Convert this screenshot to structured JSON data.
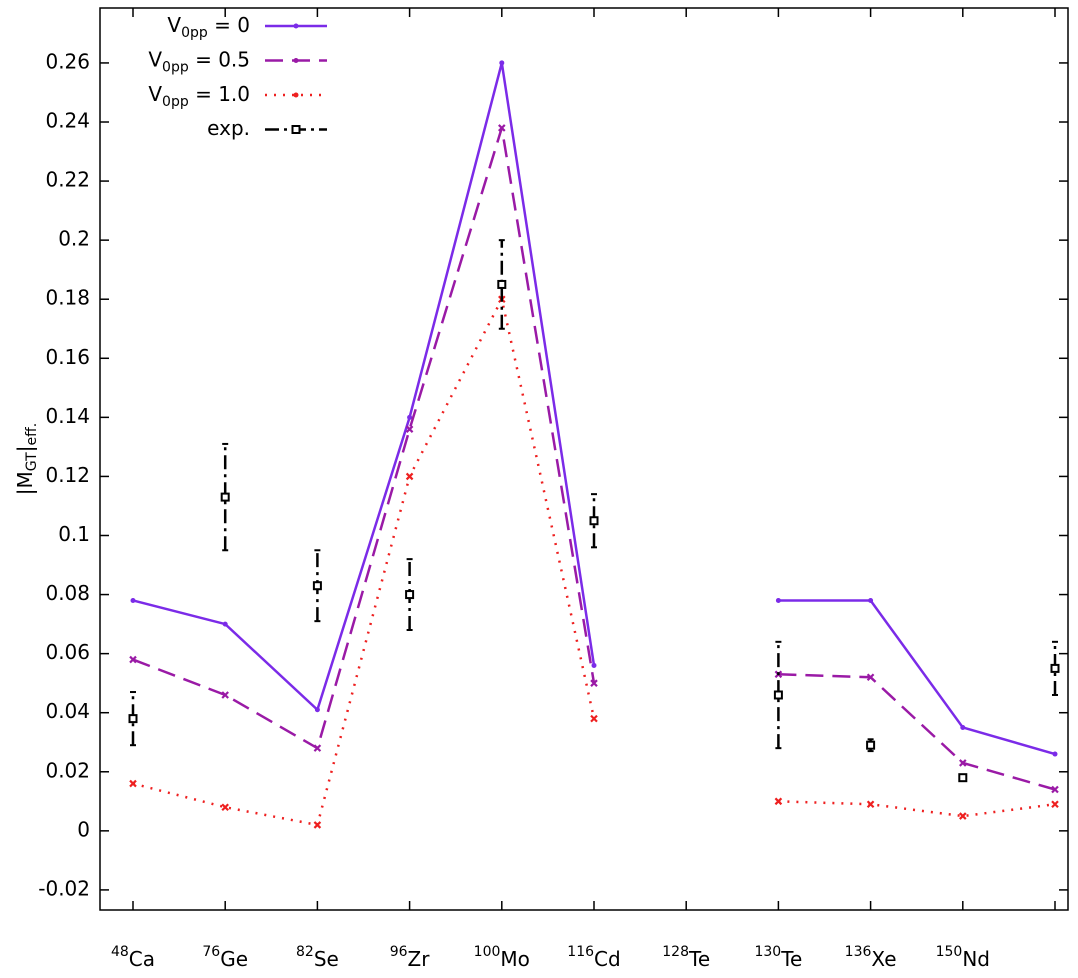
{
  "chart_data": {
    "type": "line",
    "ylabel": "|MGT|eff.",
    "categories": [
      "48Ca",
      "76Ge",
      "82Se",
      "96Zr",
      "100Mo",
      "116Cd",
      "128Te",
      "130Te",
      "136Xe",
      "150Nd",
      null
    ],
    "ylim": [
      -0.0268,
      0.2786
    ],
    "yticks": [
      -0.02,
      0,
      0.02,
      0.04,
      0.06,
      0.08,
      0.1,
      0.12,
      0.14,
      0.16,
      0.18,
      0.2,
      0.22,
      0.24,
      0.26
    ],
    "legend": "top-left",
    "series": [
      {
        "name": "V0pp = 0",
        "color": "#7b2be8",
        "style": "solid",
        "values": [
          0.078,
          0.07,
          0.041,
          0.14,
          0.26,
          0.056,
          null,
          0.078,
          0.078,
          0.035,
          0.026
        ]
      },
      {
        "name": "V0pp = 0.5",
        "color": "#9a1aa6",
        "style": "dashed",
        "values": [
          0.058,
          0.046,
          0.028,
          0.136,
          0.238,
          0.05,
          null,
          0.053,
          0.052,
          0.023,
          0.014
        ]
      },
      {
        "name": "V0pp = 1.0",
        "color": "#ee2020",
        "style": "dotted",
        "values": [
          0.016,
          0.008,
          0.002,
          0.12,
          0.18,
          0.038,
          null,
          0.01,
          0.009,
          0.005,
          0.009
        ]
      },
      {
        "name": "exp.",
        "color": "#000000",
        "style": "errorbars",
        "values": [
          0.038,
          0.113,
          0.083,
          0.08,
          0.185,
          0.105,
          null,
          0.046,
          0.029,
          0.018,
          0.055
        ],
        "errors": [
          0.009,
          0.018,
          0.012,
          0.012,
          0.015,
          0.009,
          null,
          0.018,
          0.002,
          0,
          0.009
        ]
      }
    ]
  }
}
